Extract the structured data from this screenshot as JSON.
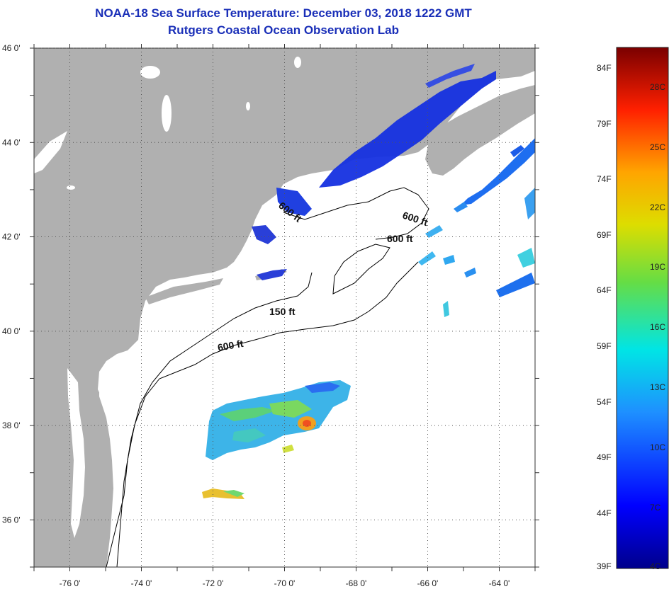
{
  "title_line1": "NOAA-18 Sea Surface Temperature:  December 03, 2018 1222 GMT",
  "title_line2": "Rutgers Coastal Ocean Observation Lab",
  "map": {
    "lon_range": [
      -77,
      -63
    ],
    "lat_range": [
      35,
      46
    ],
    "lat_ticks": [
      {
        "value": 46,
        "label": "46 0'"
      },
      {
        "value": 44,
        "label": "44 0'"
      },
      {
        "value": 42,
        "label": "42 0'"
      },
      {
        "value": 40,
        "label": "40 0'"
      },
      {
        "value": 38,
        "label": "38 0'"
      },
      {
        "value": 36,
        "label": "36 0'"
      }
    ],
    "lon_ticks": [
      {
        "value": -76,
        "label": "-76 0'"
      },
      {
        "value": -74,
        "label": "-74 0'"
      },
      {
        "value": -72,
        "label": "-72 0'"
      },
      {
        "value": -70,
        "label": "-70 0'"
      },
      {
        "value": -68,
        "label": "-68 0'"
      },
      {
        "value": -66,
        "label": "-66 0'"
      },
      {
        "value": -64,
        "label": "-64 0'"
      }
    ],
    "contour_labels": [
      "600 ft",
      "600 ft",
      "600 ft",
      "150 ft",
      "600 ft"
    ],
    "colors": {
      "land": "#b0b0b0",
      "ocean": "#ffffff",
      "grid": "#555555"
    }
  },
  "colorbar": {
    "fahrenheit_labels": [
      "84F",
      "79F",
      "74F",
      "69F",
      "64F",
      "59F",
      "54F",
      "49F",
      "44F",
      "39F"
    ],
    "celsius_labels": [
      "28C",
      "25C",
      "22C",
      "19C",
      "16C",
      "13C",
      "10C",
      "7C",
      "4C"
    ],
    "range_c": [
      4,
      30
    ]
  }
}
